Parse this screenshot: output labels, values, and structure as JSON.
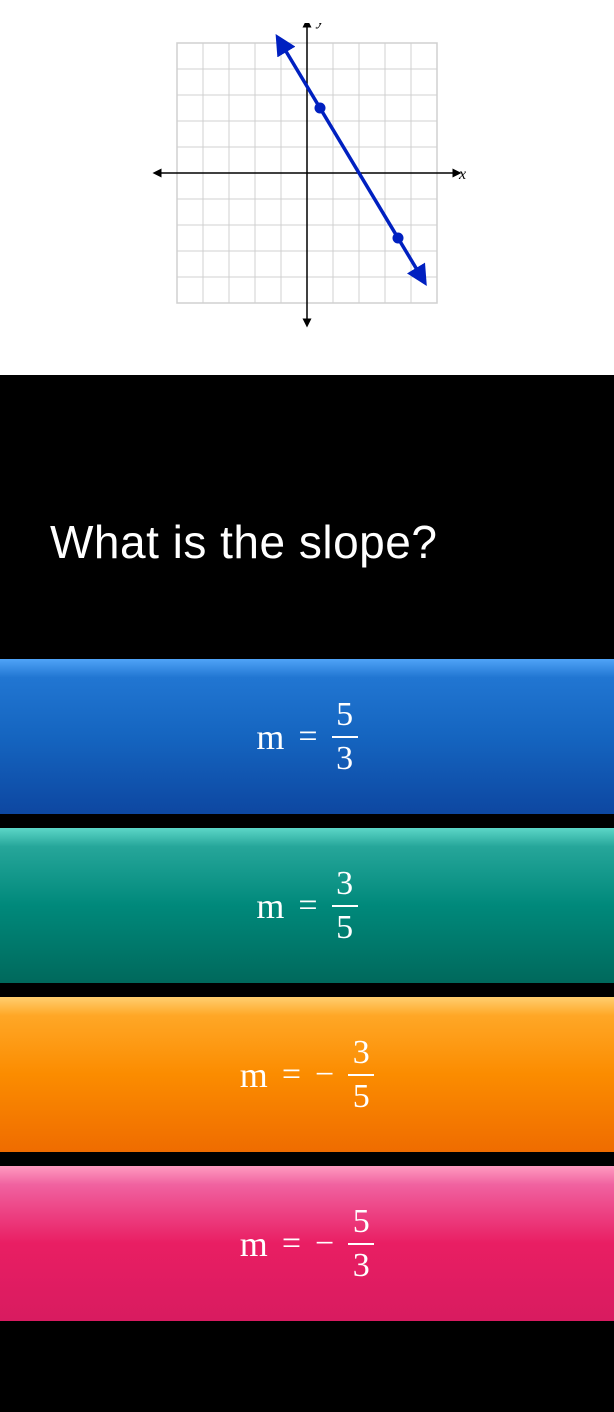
{
  "question": "What is the slope?",
  "graph": {
    "x_axis_label": "x",
    "y_axis_label": "y",
    "grid": {
      "xmin": -5,
      "xmax": 5,
      "ymin": -5,
      "ymax": 5,
      "step": 1
    },
    "grid_color": "#d0d0d0",
    "axis_color": "#000000",
    "line_color": "#0020c0",
    "point_fill": "#0020c0",
    "points": [
      {
        "x": 0.5,
        "y": 2.5
      },
      {
        "x": 3.5,
        "y": -2.5
      }
    ],
    "line": {
      "start": {
        "x": -1,
        "y": 5
      },
      "end": {
        "x": 4.4,
        "y": -4
      }
    }
  },
  "answers": [
    {
      "color_class": "answer-blue",
      "bg_top": "#4fa3f7",
      "bg_mid": "#1565c0",
      "bg_bot": "#0d47a1",
      "m": "m",
      "eq": "=",
      "neg": "",
      "num": "5",
      "den": "3"
    },
    {
      "color_class": "answer-teal",
      "bg_top": "#5cd6c7",
      "bg_mid": "#00897b",
      "bg_bot": "#00695c",
      "m": "m",
      "eq": "=",
      "neg": "",
      "num": "3",
      "den": "5"
    },
    {
      "color_class": "answer-orange",
      "bg_top": "#ffce70",
      "bg_mid": "#fb8c00",
      "bg_bot": "#ef6c00",
      "m": "m",
      "eq": "=",
      "neg": "−",
      "num": "3",
      "den": "5"
    },
    {
      "color_class": "answer-pink",
      "bg_top": "#ff9bc0",
      "bg_mid": "#e91e63",
      "bg_bot": "#d81b60",
      "m": "m",
      "eq": "=",
      "neg": "−",
      "num": "5",
      "den": "3"
    }
  ]
}
